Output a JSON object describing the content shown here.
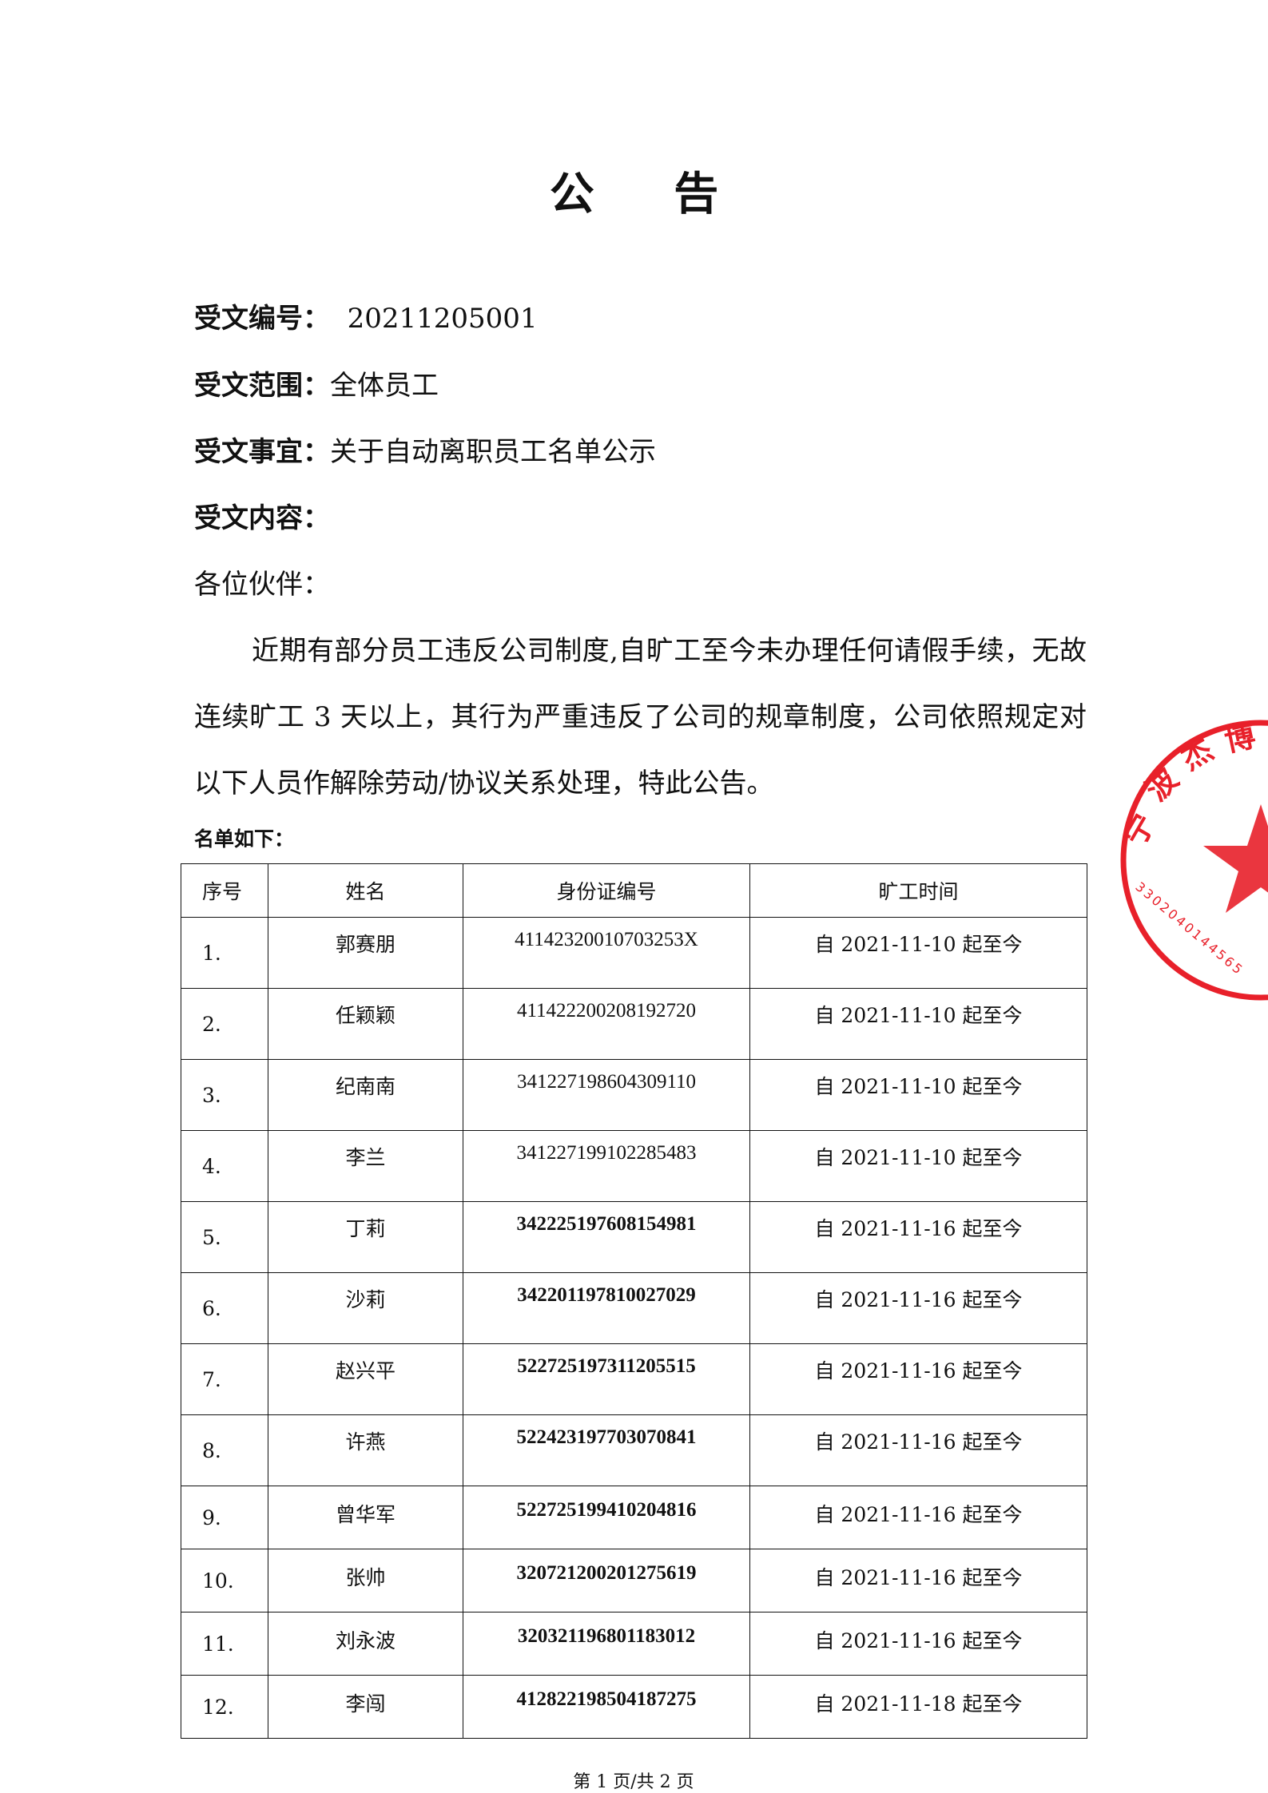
{
  "title": "公 告",
  "fields": {
    "number_label": "受文编号：",
    "number_value": "20211205001",
    "scope_label": "受文范围：",
    "scope_value": "全体员工",
    "matter_label": "受文事宜：",
    "matter_value": "关于自动离职员工名单公示",
    "content_label": "受文内容："
  },
  "greeting": "各位伙伴：",
  "body": "近期有部分员工违反公司制度,自旷工至今未办理任何请假手续，无故连续旷工 3 天以上，其行为严重违反了公司的规章制度，公司依照规定对以下人员作解除劳动/协议关系处理，特此公告。",
  "list_heading": "名单如下：",
  "table": {
    "headers": [
      "序号",
      "姓名",
      "身份证编号",
      "旷工时间"
    ],
    "rows": [
      {
        "seq": "1.",
        "name": "郭赛朋",
        "id": "41142320010703253X",
        "date": "自 2021-11-10 起至今"
      },
      {
        "seq": "2.",
        "name": "任颖颖",
        "id": "411422200208192720",
        "date": "自 2021-11-10 起至今"
      },
      {
        "seq": "3.",
        "name": "纪南南",
        "id": "341227198604309110",
        "date": "自 2021-11-10 起至今"
      },
      {
        "seq": "4.",
        "name": "李兰",
        "id": "341227199102285483",
        "date": "自 2021-11-10 起至今"
      },
      {
        "seq": "5.",
        "name": "丁莉",
        "id": "342225197608154981",
        "date": "自 2021-11-16 起至今"
      },
      {
        "seq": "6.",
        "name": "沙莉",
        "id": "342201197810027029",
        "date": "自 2021-11-16 起至今"
      },
      {
        "seq": "7.",
        "name": "赵兴平",
        "id": "522725197311205515",
        "date": "自 2021-11-16 起至今"
      },
      {
        "seq": "8.",
        "name": "许燕",
        "id": "522423197703070841",
        "date": "自 2021-11-16 起至今"
      },
      {
        "seq": "9.",
        "name": "曾华军",
        "id": "522725199410204816",
        "date": "自 2021-11-16 起至今"
      },
      {
        "seq": "10.",
        "name": "张帅",
        "id": "320721200201275619",
        "date": "自 2021-11-16 起至今"
      },
      {
        "seq": "11.",
        "name": "刘永波",
        "id": "320321196801183012",
        "date": "自 2021-11-16 起至今"
      },
      {
        "seq": "12.",
        "name": "李闯",
        "id": "412822198504187275",
        "date": "自 2021-11-18 起至今"
      }
    ]
  },
  "footer": "第 1 页/共 2 页",
  "stamp": {
    "text": "宁波杰博",
    "code": "3302040144565",
    "color": "#e8202a"
  }
}
